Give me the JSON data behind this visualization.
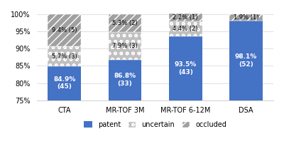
{
  "categories": [
    "CTA",
    "MR-TOF 3M",
    "MR-TOF 6-12M",
    "DSA"
  ],
  "patent": [
    84.9,
    86.8,
    93.5,
    98.1
  ],
  "uncertain": [
    5.7,
    7.9,
    4.4,
    0.0
  ],
  "occluded": [
    9.4,
    5.3,
    2.2,
    1.9
  ],
  "patent_labels": [
    "84.9%\n(45)",
    "86.8%\n(33)",
    "93.5%\n(43)",
    "98.1%\n(52)"
  ],
  "uncertain_labels": [
    "5.7% (3)",
    "7.9% (3)",
    "4.4% (2)",
    ""
  ],
  "occluded_labels": [
    "9.4% (5)",
    "5.3% (2)",
    "2.2% (1)",
    "1.9% (1)"
  ],
  "patent_color": "#4472C4",
  "uncertain_color": "#C0C0C0",
  "occluded_color": "#A0A0A0",
  "ylim_min": 75,
  "ylim_max": 101,
  "yticks": [
    75,
    80,
    85,
    90,
    95,
    100
  ],
  "ytick_labels": [
    "75%",
    "80%",
    "85%",
    "90%",
    "95%",
    "100%"
  ],
  "bar_width": 0.55,
  "figsize": [
    4.0,
    2.33
  ],
  "dpi": 100,
  "legend_labels": [
    "patent",
    "uncertain",
    "occluded"
  ],
  "font_size_labels": 6.5,
  "font_size_ticks": 7,
  "font_size_legend": 7
}
